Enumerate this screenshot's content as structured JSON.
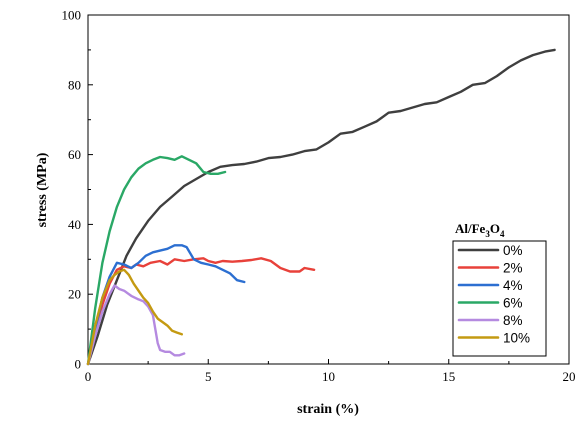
{
  "chart_data": {
    "type": "line",
    "xlabel": "strain (%)",
    "ylabel": "stress (MPa)",
    "xlim": [
      0,
      20
    ],
    "ylim": [
      0,
      100
    ],
    "x_ticks": [
      0,
      5,
      10,
      15,
      20
    ],
    "y_ticks": [
      0,
      20,
      40,
      60,
      80,
      100
    ],
    "x_tick_labels": [
      "0",
      "5",
      "10",
      "15",
      "20"
    ],
    "y_tick_labels": [
      "0",
      "20",
      "40",
      "60",
      "80",
      "100"
    ],
    "grid": false,
    "legend": {
      "title_main": "Al/Fe",
      "title_sub1": "3",
      "title_mid": "O",
      "title_sub2": "4",
      "placement": "bottom-right"
    },
    "series": [
      {
        "name": "0%",
        "color": "#3f3f3f",
        "x": [
          0,
          0.4,
          0.8,
          1.2,
          1.6,
          2.0,
          2.5,
          3.0,
          3.5,
          4.0,
          4.5,
          5.0,
          5.5,
          6.0,
          6.5,
          7.0,
          7.5,
          8.0,
          8.5,
          9.0,
          9.5,
          10.0,
          10.5,
          11.0,
          11.5,
          12.0,
          12.5,
          13.0,
          13.5,
          14.0,
          14.5,
          15.0,
          15.5,
          16.0,
          16.5,
          17.0,
          17.5,
          18.0,
          18.5,
          19.0,
          19.4
        ],
        "y": [
          0,
          8,
          17,
          24,
          31,
          36,
          41,
          45,
          48,
          51,
          53,
          55,
          56.5,
          57,
          57.3,
          58,
          59,
          59.3,
          60,
          61,
          61.5,
          63.5,
          66,
          66.5,
          68,
          69.5,
          72,
          72.5,
          73.5,
          74.5,
          75,
          76.5,
          78,
          80,
          80.5,
          82.5,
          85,
          87,
          88.5,
          89.5,
          90
        ]
      },
      {
        "name": "2%",
        "color": "#e8413a",
        "x": [
          0,
          0.3,
          0.6,
          0.9,
          1.2,
          1.5,
          1.8,
          2.0,
          2.3,
          2.6,
          3.0,
          3.3,
          3.6,
          4.0,
          4.4,
          4.8,
          5.0,
          5.3,
          5.6,
          6.0,
          6.4,
          6.8,
          7.2,
          7.6,
          8.0,
          8.4,
          8.8,
          9.0,
          9.4
        ],
        "y": [
          0,
          9,
          17,
          23,
          27,
          28,
          27.5,
          28.5,
          28,
          29,
          29.5,
          28.5,
          30,
          29.5,
          30,
          30.3,
          29.5,
          29,
          29.5,
          29.3,
          29.5,
          29.8,
          30.3,
          29.5,
          27.5,
          26.5,
          26.5,
          27.5,
          27
        ]
      },
      {
        "name": "4%",
        "color": "#2c6fd1",
        "x": [
          0,
          0.3,
          0.6,
          0.9,
          1.2,
          1.5,
          1.8,
          2.1,
          2.4,
          2.7,
          3.0,
          3.3,
          3.6,
          3.9,
          4.1,
          4.4,
          4.7,
          5.0,
          5.3,
          5.6,
          5.9,
          6.2,
          6.5
        ],
        "y": [
          0,
          10,
          19,
          25,
          29,
          28.5,
          27.5,
          29,
          31,
          32,
          32.5,
          33,
          34,
          34,
          33.5,
          30,
          29,
          28.5,
          28,
          27,
          26,
          24,
          23.5
        ]
      },
      {
        "name": "6%",
        "color": "#2aa866",
        "x": [
          0,
          0.3,
          0.6,
          0.9,
          1.2,
          1.5,
          1.8,
          2.1,
          2.4,
          2.7,
          3.0,
          3.3,
          3.6,
          3.9,
          4.2,
          4.5,
          4.8,
          5.1,
          5.4,
          5.7
        ],
        "y": [
          0,
          16,
          29,
          38,
          45,
          50,
          53.5,
          56,
          57.5,
          58.5,
          59.3,
          59,
          58.5,
          59.5,
          58.5,
          57.5,
          55,
          54.5,
          54.5,
          55
        ]
      },
      {
        "name": "8%",
        "color": "#b58ae0",
        "x": [
          0,
          0.3,
          0.6,
          0.9,
          1.1,
          1.3,
          1.5,
          1.8,
          2.1,
          2.3,
          2.5,
          2.7,
          2.8,
          2.9,
          3.0,
          3.2,
          3.4,
          3.6,
          3.8,
          4.0
        ],
        "y": [
          0,
          8,
          15,
          20,
          22.5,
          21.5,
          21,
          19.5,
          18.5,
          18,
          16.5,
          14,
          10,
          6,
          4,
          3.5,
          3.5,
          2.5,
          2.5,
          3
        ]
      },
      {
        "name": "10%",
        "color": "#c49a12",
        "x": [
          0,
          0.3,
          0.6,
          0.9,
          1.1,
          1.3,
          1.5,
          1.7,
          1.9,
          2.1,
          2.3,
          2.5,
          2.7,
          2.9,
          3.1,
          3.3,
          3.5,
          3.7,
          3.9
        ],
        "y": [
          0,
          11,
          19,
          24,
          25.5,
          26.5,
          27,
          25.5,
          23,
          21,
          19,
          17.5,
          15,
          13,
          12,
          11,
          9.5,
          9,
          8.5
        ]
      }
    ]
  }
}
